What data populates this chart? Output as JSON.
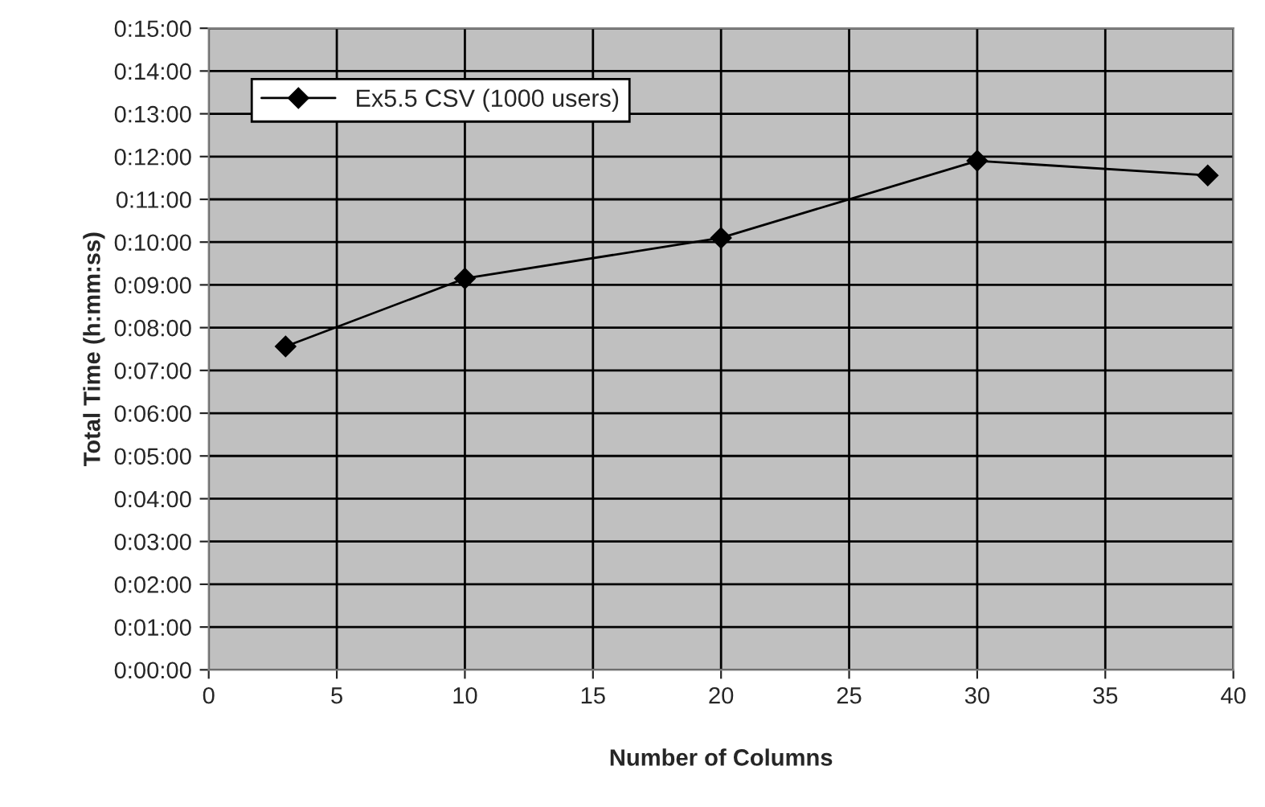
{
  "chart_data": {
    "type": "line",
    "xlabel": "Number of Columns",
    "ylabel": "Total Time (h:mm:ss)",
    "x": [
      3,
      10,
      20,
      30,
      39
    ],
    "series": [
      {
        "name": "Ex5.5 CSV (1000 users)",
        "color": "#000000",
        "values": [
          7.56,
          9.15,
          10.1,
          11.9,
          11.56
        ]
      }
    ],
    "xlim": [
      0,
      40
    ],
    "xticks": [
      0,
      5,
      10,
      15,
      20,
      25,
      30,
      35,
      40
    ],
    "ylim": [
      0,
      15
    ],
    "yticks": [
      {
        "value": 0,
        "label": "0:00:00"
      },
      {
        "value": 1,
        "label": "0:01:00"
      },
      {
        "value": 2,
        "label": "0:02:00"
      },
      {
        "value": 3,
        "label": "0:03:00"
      },
      {
        "value": 4,
        "label": "0:04:00"
      },
      {
        "value": 5,
        "label": "0:05:00"
      },
      {
        "value": 6,
        "label": "0:06:00"
      },
      {
        "value": 7,
        "label": "0:07:00"
      },
      {
        "value": 8,
        "label": "0:08:00"
      },
      {
        "value": 9,
        "label": "0:09:00"
      },
      {
        "value": 10,
        "label": "0:10:00"
      },
      {
        "value": 11,
        "label": "0:11:00"
      },
      {
        "value": 12,
        "label": "0:12:00"
      },
      {
        "value": 13,
        "label": "0:13:00"
      },
      {
        "value": 14,
        "label": "0:14:00"
      },
      {
        "value": 15,
        "label": "0:15:00"
      }
    ],
    "grid": true,
    "legend": "top left",
    "marker": "diamond",
    "line_style": "solid"
  }
}
